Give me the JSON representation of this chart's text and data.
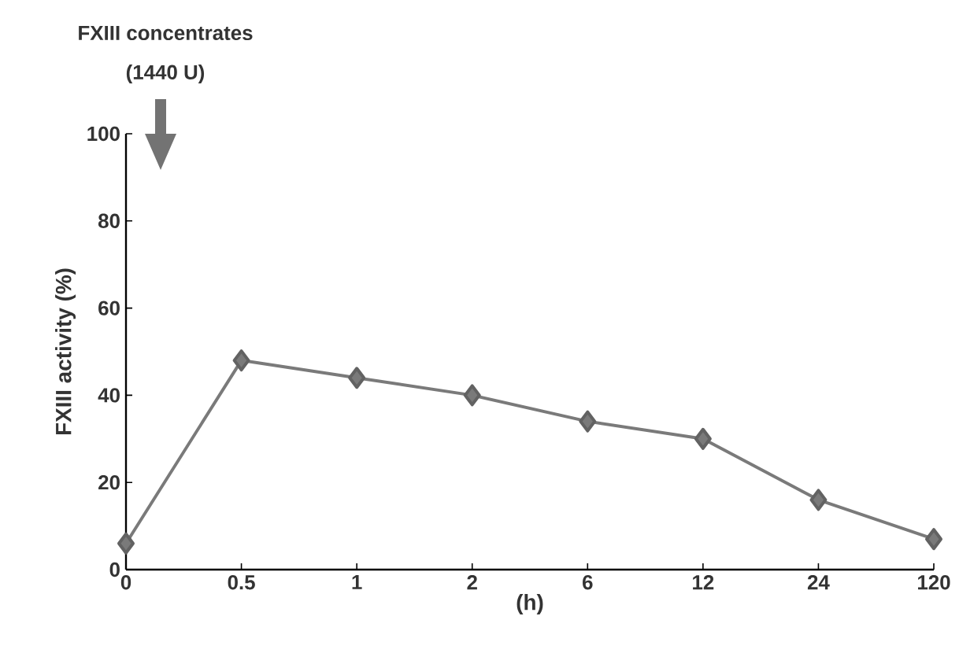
{
  "chart_data": {
    "type": "line",
    "categories": [
      "0",
      "0.5",
      "1",
      "2",
      "6",
      "12",
      "24",
      "120"
    ],
    "values": [
      6,
      48,
      44,
      40,
      34,
      30,
      16,
      7
    ],
    "color": "#7a7a7a",
    "marker": "diamond",
    "line_style": "solid",
    "xlabel": "(h)",
    "ylabel": "FXIII activity (%)",
    "ylim": [
      0,
      100
    ],
    "yticks": [
      0,
      20,
      40,
      60,
      80,
      100
    ],
    "annotations": [
      "FXIII concentrates",
      "(1440 U)"
    ]
  }
}
